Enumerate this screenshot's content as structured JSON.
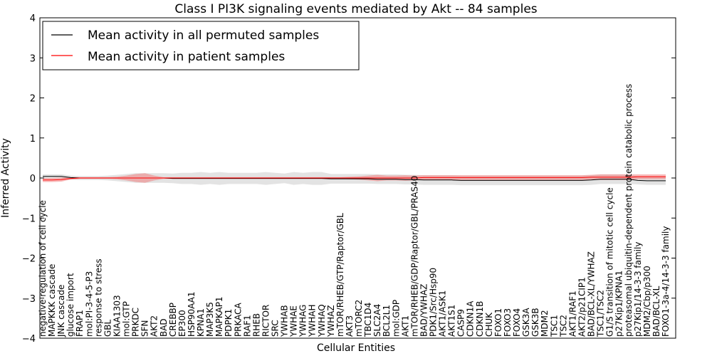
{
  "chart_data": {
    "type": "line",
    "title": "Class I PI3K signaling events mediated by Akt -- 84 samples",
    "xlabel": "Cellular Entities",
    "ylabel": "Inferred Activity",
    "ylim": [
      -4,
      4
    ],
    "yticks": [
      4,
      3,
      2,
      1,
      0,
      -1,
      -2,
      -3,
      -4
    ],
    "ytick_labels": [
      "4",
      "3",
      "2",
      "1",
      "0",
      "−1",
      "−2",
      "−3",
      "−4"
    ],
    "legend_position": "top-left",
    "categories": [
      "negative regulation of cell cycle",
      "MAPKKK cascade",
      "JNK cascade",
      "glucose import",
      "FRAP1",
      "mol:PI-3-4-5-P3",
      "response to stress",
      "GBL",
      "KIAA1303",
      "mol:GTP",
      "PRKDC",
      "SFN",
      "AKT2",
      "BAD",
      "CREBBP",
      "EP300",
      "HSP90AA1",
      "KPNA1",
      "MAP3K5",
      "MAPKAP1",
      "PDPK1",
      "PRKACA",
      "RAF1",
      "RHEB",
      "RICTOR",
      "SRC",
      "YWHAB",
      "YWHAE",
      "YWHAG",
      "YWHAH",
      "YWHAQ",
      "YWHAZ",
      "mTOR/RHEB/GTP/Raptor/GBL",
      "AKT3",
      "mTORC2",
      "TBC1D4",
      "SLC2A4",
      "BCL2L1",
      "mol:GDP",
      "AKT1",
      "mTOR/RHEB/GDP/Raptor/GBL/PRAS40",
      "BAD/YWHAZ",
      "PDK1/Src/Hsp90",
      "AKT1/ASK1",
      "AKT1S1",
      "CASP9",
      "CDKN1A",
      "CDKN1B",
      "CHUK",
      "FOXO1",
      "FOXO3",
      "FOXO4",
      "GSK3A",
      "GSK3B",
      "MDM2",
      "TSC1",
      "TSC2",
      "AKT1/RAF1",
      "AKT2/p21CIP1",
      "BAD/BCL-XL/YWHAZ",
      "TSC1/TSC2",
      "G1/S transition of mitotic cell cycle",
      "p27Kip1/KPNA1",
      "proteasomal ubiquitin-dependent protein catabolic process",
      "p27Kip1/14-3-3 family",
      "MDM2/Cbp/p300",
      "BAD/BCL-XL",
      "FOXO1-3a-4/14-3-3 family"
    ],
    "series": [
      {
        "name": "Mean activity in all permuted samples",
        "color": "#000000",
        "band_color": "#c8c8c8",
        "values": [
          0.04,
          0.04,
          0.04,
          0.01,
          0.0,
          0.0,
          0.0,
          0.0,
          0.0,
          0.0,
          0.0,
          0.0,
          0.0,
          0.0,
          -0.01,
          -0.01,
          -0.01,
          -0.01,
          -0.01,
          -0.01,
          -0.01,
          -0.01,
          -0.01,
          -0.01,
          -0.01,
          -0.01,
          -0.01,
          -0.01,
          -0.01,
          -0.01,
          -0.01,
          -0.02,
          -0.02,
          -0.02,
          -0.02,
          -0.02,
          -0.03,
          -0.03,
          -0.03,
          -0.04,
          -0.04,
          -0.05,
          -0.05,
          -0.05,
          -0.05,
          -0.06,
          -0.06,
          -0.06,
          -0.06,
          -0.06,
          -0.06,
          -0.06,
          -0.06,
          -0.06,
          -0.06,
          -0.06,
          -0.06,
          -0.06,
          -0.06,
          -0.05,
          -0.03,
          -0.03,
          -0.03,
          -0.03,
          -0.06,
          -0.07,
          -0.07,
          -0.07
        ],
        "band": [
          0.05,
          0.05,
          0.05,
          0.05,
          0.05,
          0.05,
          0.05,
          0.06,
          0.08,
          0.1,
          0.12,
          0.12,
          0.12,
          0.12,
          0.12,
          0.14,
          0.14,
          0.16,
          0.14,
          0.16,
          0.14,
          0.14,
          0.14,
          0.14,
          0.16,
          0.14,
          0.12,
          0.16,
          0.14,
          0.16,
          0.16,
          0.12,
          0.12,
          0.12,
          0.12,
          0.12,
          0.12,
          0.12,
          0.12,
          0.12,
          0.12,
          0.12,
          0.12,
          0.12,
          0.12,
          0.12,
          0.12,
          0.12,
          0.12,
          0.12,
          0.12,
          0.12,
          0.12,
          0.12,
          0.12,
          0.12,
          0.12,
          0.12,
          0.12,
          0.12,
          0.12,
          0.12,
          0.12,
          0.12,
          0.1,
          0.1,
          0.1,
          0.1
        ]
      },
      {
        "name": "Mean activity in patient samples",
        "color": "#ff0000",
        "band_color": "#f08080",
        "values": [
          -0.05,
          -0.05,
          -0.04,
          -0.01,
          0.0,
          0.0,
          0.0,
          0.0,
          0.0,
          0.0,
          0.0,
          0.0,
          0.0,
          0.0,
          0.0,
          0.0,
          0.0,
          0.0,
          0.0,
          0.0,
          0.0,
          0.0,
          0.0,
          0.0,
          0.0,
          0.0,
          0.0,
          0.0,
          0.0,
          0.0,
          0.0,
          0.0,
          0.0,
          0.0,
          0.0,
          0.0,
          0.0,
          0.0,
          0.0,
          0.0,
          0.0,
          0.01,
          0.01,
          0.01,
          0.01,
          0.01,
          0.01,
          0.01,
          0.01,
          0.01,
          0.01,
          0.01,
          0.01,
          0.01,
          0.01,
          0.01,
          0.01,
          0.01,
          0.01,
          0.02,
          0.02,
          0.02,
          0.02,
          0.02,
          0.03,
          0.03,
          0.03,
          0.03
        ],
        "band": [
          0.05,
          0.05,
          0.05,
          0.03,
          0.02,
          0.02,
          0.02,
          0.02,
          0.03,
          0.06,
          0.1,
          0.12,
          0.06,
          0.02,
          0.02,
          0.02,
          0.02,
          0.02,
          0.02,
          0.02,
          0.02,
          0.02,
          0.02,
          0.02,
          0.02,
          0.02,
          0.02,
          0.02,
          0.02,
          0.02,
          0.02,
          0.02,
          0.02,
          0.03,
          0.04,
          0.06,
          0.08,
          0.06,
          0.06,
          0.07,
          0.06,
          0.06,
          0.06,
          0.06,
          0.06,
          0.06,
          0.06,
          0.06,
          0.06,
          0.06,
          0.06,
          0.06,
          0.06,
          0.06,
          0.06,
          0.06,
          0.06,
          0.06,
          0.06,
          0.06,
          0.07,
          0.07,
          0.07,
          0.07,
          0.06,
          0.06,
          0.06,
          0.06
        ]
      }
    ]
  }
}
